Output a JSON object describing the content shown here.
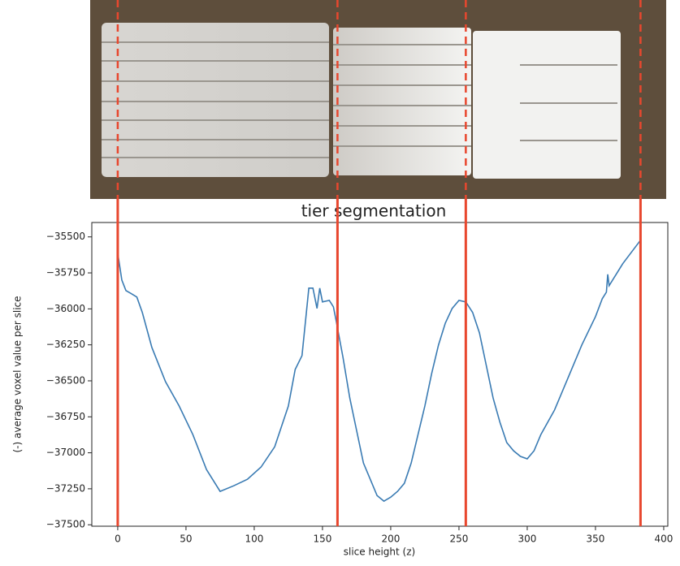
{
  "chart_data": {
    "type": "line",
    "title": "tier segmentation",
    "x_label": "slice height (z)",
    "y_label": "(-) average voxel value per slice",
    "xlim": [
      -19,
      403
    ],
    "ylim": [
      -37510,
      -35400
    ],
    "xticks": [
      0,
      50,
      100,
      150,
      200,
      250,
      300,
      350,
      400
    ],
    "yticks": [
      {
        "value": -37500,
        "label": "−37500"
      },
      {
        "value": -37250,
        "label": "−37250"
      },
      {
        "value": -37000,
        "label": "−37000"
      },
      {
        "value": -36750,
        "label": "−36750"
      },
      {
        "value": -36500,
        "label": "−36500"
      },
      {
        "value": -36250,
        "label": "−36250"
      },
      {
        "value": -36000,
        "label": "−36000"
      },
      {
        "value": -35750,
        "label": "−35750"
      },
      {
        "value": -35500,
        "label": "−35500"
      }
    ],
    "line_color": "#3a7bb3",
    "vline_color": "#e8472e",
    "vlines": [
      0,
      161,
      255,
      383
    ],
    "x": [
      0,
      3,
      6,
      10,
      14,
      18,
      25,
      35,
      45,
      55,
      65,
      75,
      85,
      95,
      105,
      115,
      125,
      130,
      135,
      140,
      143,
      146,
      148,
      150,
      155,
      158,
      160,
      165,
      170,
      175,
      180,
      185,
      190,
      195,
      200,
      205,
      210,
      215,
      220,
      225,
      230,
      235,
      240,
      245,
      250,
      255,
      260,
      265,
      270,
      275,
      280,
      285,
      290,
      295,
      300,
      305,
      310,
      320,
      330,
      340,
      350,
      355,
      358,
      359,
      360,
      370,
      383
    ],
    "values": [
      -35613,
      -35800,
      -35873,
      -35895,
      -35918,
      -36025,
      -36268,
      -36506,
      -36675,
      -36873,
      -37116,
      -37268,
      -37229,
      -37184,
      -37099,
      -36958,
      -36675,
      -36421,
      -36325,
      -35856,
      -35856,
      -35997,
      -35856,
      -35952,
      -35941,
      -35986,
      -36082,
      -36336,
      -36619,
      -36845,
      -37071,
      -37184,
      -37297,
      -37336,
      -37308,
      -37268,
      -37212,
      -37071,
      -36873,
      -36675,
      -36449,
      -36251,
      -36099,
      -35997,
      -35941,
      -35952,
      -36025,
      -36167,
      -36393,
      -36619,
      -36788,
      -36929,
      -36986,
      -37025,
      -37042,
      -36986,
      -36873,
      -36703,
      -36477,
      -36251,
      -36054,
      -35929,
      -35884,
      -35760,
      -35839,
      -35686,
      -35523
    ]
  }
}
